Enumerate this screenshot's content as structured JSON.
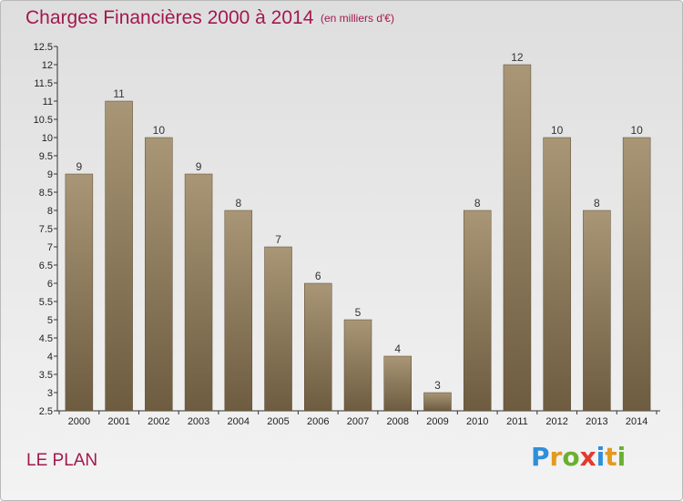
{
  "header": {
    "title": "Charges Financières 2000 à 2014",
    "unit": "(en milliers d'€)"
  },
  "footer": {
    "commune": "LE PLAN",
    "logo_letters": [
      "P",
      "r",
      "o",
      "x",
      "i",
      "t",
      "i"
    ],
    "logo_colors": [
      "#2f8fd8",
      "#e39a1f",
      "#6ab030",
      "#e23b2e",
      "#2f8fd8",
      "#e39a1f",
      "#6ab030"
    ]
  },
  "colors": {
    "title": "#a3184e",
    "bar_top": "#a89676",
    "bar_bottom": "#6e5c41",
    "axis": "#333333"
  },
  "chart_data": {
    "type": "bar",
    "title": "Charges Financières 2000 à 2014",
    "subtitle": "(en milliers d'€)",
    "categories": [
      "2000",
      "2001",
      "2002",
      "2003",
      "2004",
      "2005",
      "2006",
      "2007",
      "2008",
      "2009",
      "2010",
      "2011",
      "2012",
      "2013",
      "2014"
    ],
    "values": [
      9,
      11,
      10,
      9,
      8,
      7,
      6,
      5,
      4,
      3,
      8,
      12,
      10,
      8,
      10
    ],
    "ylim": [
      2.5,
      12.5
    ],
    "yticks": [
      "2.5",
      "3",
      "3.5",
      "4",
      "4.5",
      "5",
      "5.5",
      "6",
      "6.5",
      "7",
      "7.5",
      "8",
      "8.5",
      "9",
      "9.5",
      "10",
      "10.5",
      "11",
      "11.5",
      "12",
      "12.5"
    ],
    "grid": false,
    "legend": "none"
  }
}
